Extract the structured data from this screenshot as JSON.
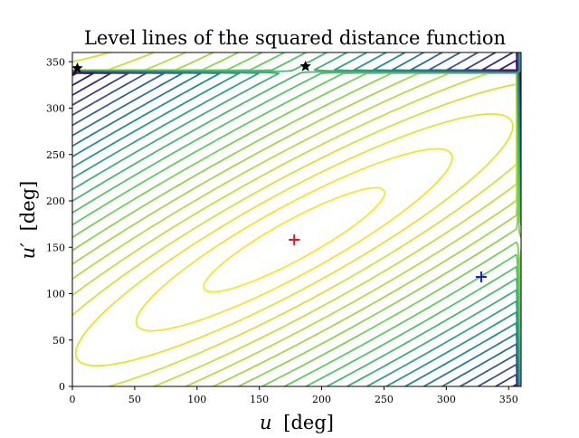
{
  "chart_data": {
    "type": "contour",
    "title": "Level lines of the squared distance function",
    "xlabel": "u [deg]",
    "ylabel": "u′ [deg]",
    "xlabel_parts": {
      "symbol": "u",
      "unit": "[deg]"
    },
    "ylabel_parts": {
      "symbol": "u′",
      "unit": "[deg]"
    },
    "xlim": [
      0,
      360
    ],
    "ylim": [
      0,
      360
    ],
    "x_ticks": [
      0,
      50,
      100,
      150,
      200,
      250,
      300,
      350
    ],
    "y_ticks": [
      0,
      50,
      100,
      150,
      200,
      250,
      300,
      350
    ],
    "x_tick_labels": [
      "0",
      "50",
      "100",
      "150",
      "200",
      "250",
      "300",
      "350"
    ],
    "y_tick_labels": [
      "0",
      "50",
      "100",
      "150",
      "200",
      "250",
      "300",
      "350"
    ],
    "colormap": "viridis",
    "colormap_stops": [
      "#440154",
      "#3b528b",
      "#21918c",
      "#5ec962",
      "#fde725"
    ],
    "grid": false,
    "contour_center": {
      "u": 178,
      "u_prime": 158
    },
    "ellipse_axis_angle_deg": 37,
    "ellipse_axis_ratio": 4.6,
    "num_levels": 24,
    "markers": [
      {
        "name": "red-plus-marker",
        "shape": "plus",
        "color": "#e8112d",
        "u": 178,
        "u_prime": 158
      },
      {
        "name": "blue-plus-marker",
        "shape": "plus",
        "color": "#1616e6",
        "u": 328,
        "u_prime": 118
      },
      {
        "name": "black-star-marker-left",
        "shape": "star",
        "color": "#000000",
        "u": 4,
        "u_prime": 343
      },
      {
        "name": "black-star-marker-right",
        "shape": "star",
        "color": "#000000",
        "u": 187,
        "u_prime": 345
      }
    ]
  }
}
